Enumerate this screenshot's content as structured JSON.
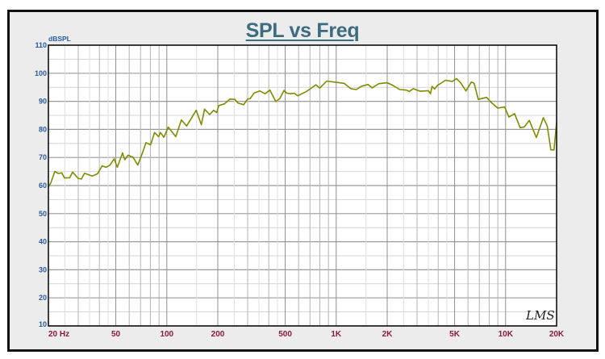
{
  "chart_data": {
    "type": "line",
    "title": "SPL vs Freq",
    "xlabel": "Hz",
    "ylabel": "dBSPL",
    "xscale": "log",
    "xlim": [
      20,
      20000
    ],
    "ylim": [
      10,
      110
    ],
    "grid": true,
    "x_ticks": [
      20,
      50,
      100,
      200,
      500,
      1000,
      2000,
      5000,
      10000,
      20000
    ],
    "x_tick_labels": [
      "20  Hz",
      "50",
      "100",
      "200",
      "500",
      "1K",
      "2K",
      "5K",
      "10K",
      "20K"
    ],
    "y_ticks": [
      10,
      20,
      30,
      40,
      50,
      60,
      70,
      80,
      90,
      100,
      110
    ],
    "y_tick_labels": [
      "10",
      "20",
      "30",
      "40",
      "50",
      "60",
      "70",
      "80",
      "90",
      "100",
      "110"
    ],
    "watermark": "LMS",
    "series": [
      {
        "name": "SPL",
        "color": "#7f8a00",
        "x": [
          20,
          20.7,
          21.8,
          22.9,
          24,
          24.9,
          26.7,
          27.8,
          29.9,
          31.3,
          32.7,
          36.3,
          39,
          41.5,
          43.8,
          46.2,
          48.9,
          51,
          54.8,
          56.5,
          59,
          63.2,
          67.4,
          71.8,
          75.4,
          80.2,
          84.7,
          89.5,
          91.7,
          96.1,
          102,
          113,
          122,
          131,
          149,
          160,
          167,
          179,
          189,
          197,
          203,
          219,
          236,
          252,
          263,
          284,
          300,
          311,
          328,
          354,
          380,
          406,
          440,
          465,
          492,
          511,
          540,
          566,
          591,
          598,
          668,
          759,
          800,
          879,
          1114,
          1218,
          1314,
          1414,
          1543,
          1630,
          1787,
          2000,
          2115,
          2372,
          2600,
          2700,
          2850,
          3130,
          3500,
          3600,
          3680,
          3810,
          3950,
          4420,
          4850,
          5130,
          5430,
          5830,
          6280,
          6520,
          6900,
          7730,
          8180,
          8990,
          9870,
          10450,
          11300,
          12180,
          12900,
          13800,
          15190,
          16700,
          17630,
          18500,
          19320,
          20000
        ],
        "y": [
          59.5,
          61,
          65,
          64.3,
          64.5,
          62.7,
          62.8,
          64.8,
          62.6,
          62.3,
          64.4,
          63.4,
          64.2,
          67,
          66.5,
          67.3,
          69.5,
          66.5,
          71.6,
          69.2,
          70.8,
          70.1,
          67.3,
          71.6,
          75.3,
          74.5,
          78.9,
          77.4,
          78.9,
          77.2,
          80.8,
          77.4,
          83.4,
          81.2,
          86.8,
          81.7,
          87.2,
          85.3,
          86.8,
          86,
          88.5,
          89.1,
          90.8,
          90.7,
          89.4,
          88.8,
          90.8,
          91,
          93,
          93.7,
          92.7,
          94,
          89.9,
          91,
          93.9,
          92.9,
          92.7,
          92.9,
          92,
          92.1,
          93.5,
          95.9,
          94.7,
          97.2,
          96.4,
          94.5,
          94.2,
          95.4,
          96,
          94.8,
          96.3,
          96.6,
          96,
          94.2,
          94,
          93.5,
          94.5,
          93.6,
          93.8,
          92.7,
          95.3,
          94.4,
          95.6,
          97.5,
          97.1,
          98.1,
          96.6,
          93.7,
          96.9,
          96.4,
          90.7,
          91.4,
          89.7,
          87.6,
          88,
          84.4,
          85.6,
          80.6,
          80.9,
          83.2,
          77.1,
          84.2,
          81.1,
          72.7,
          72.7,
          82.6
        ]
      }
    ]
  }
}
